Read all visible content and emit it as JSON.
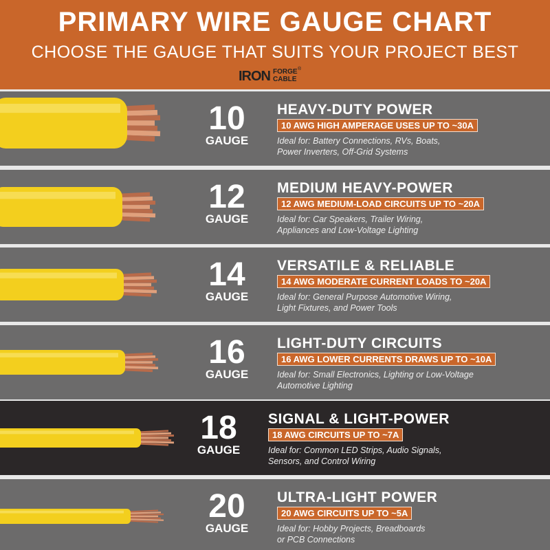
{
  "header": {
    "title": "PRIMARY WIRE GAUGE CHART",
    "subtitle": "CHOOSE THE GAUGE THAT SUITS YOUR PROJECT BEST",
    "logo": {
      "iron": "IRON",
      "forge": "FORGE",
      "mark": "®",
      "cable": "CABLE"
    }
  },
  "rows": [
    {
      "gauge": "10",
      "unit": "GAUGE",
      "heading": "HEAVY-DUTY POWER",
      "tag": "10 AWG HIGH AMPERAGE USES UP TO ~30A",
      "ideal": [
        "Ideal for: Battery Connections, RVs, Boats,",
        "Power Inverters, Off-Grid Systems"
      ]
    },
    {
      "gauge": "12",
      "unit": "GAUGE",
      "heading": "MEDIUM HEAVY-POWER",
      "tag": "12 AWG MEDIUM-LOAD CIRCUITS UP TO ~20A",
      "ideal": [
        "Ideal for: Car Speakers, Trailer Wiring,",
        "Appliances and Low-Voltage Lighting"
      ]
    },
    {
      "gauge": "14",
      "unit": "GAUGE",
      "heading": "VERSATILE & RELIABLE",
      "tag": "14 AWG MODERATE CURRENT LOADS TO ~20A",
      "ideal": [
        "Ideal for: General Purpose Automotive Wiring,",
        "Light Fixtures, and Power Tools"
      ]
    },
    {
      "gauge": "16",
      "unit": "GAUGE",
      "heading": "LIGHT-DUTY CIRCUITS",
      "tag": "16 AWG LOWER CURRENTS DRAWS UP TO ~10A",
      "ideal": [
        "Ideal for: Small Electronics, Lighting or Low-Voltage",
        "Automotive Lighting"
      ]
    },
    {
      "gauge": "18",
      "unit": "GAUGE",
      "heading": "SIGNAL & LIGHT-POWER",
      "tag": "18 AWG CIRCUITS UP TO ~7A",
      "ideal": [
        "Ideal for: Common LED Strips, Audio Signals,",
        "Sensors, and Control Wiring"
      ]
    },
    {
      "gauge": "20",
      "unit": "GAUGE",
      "heading": "ULTRA-LIGHT POWER",
      "tag": "20 AWG CIRCUITS UP TO ~5A",
      "ideal": [
        "Ideal for: Hobby Projects, Breadboards",
        "or PCB Connections"
      ]
    }
  ]
}
